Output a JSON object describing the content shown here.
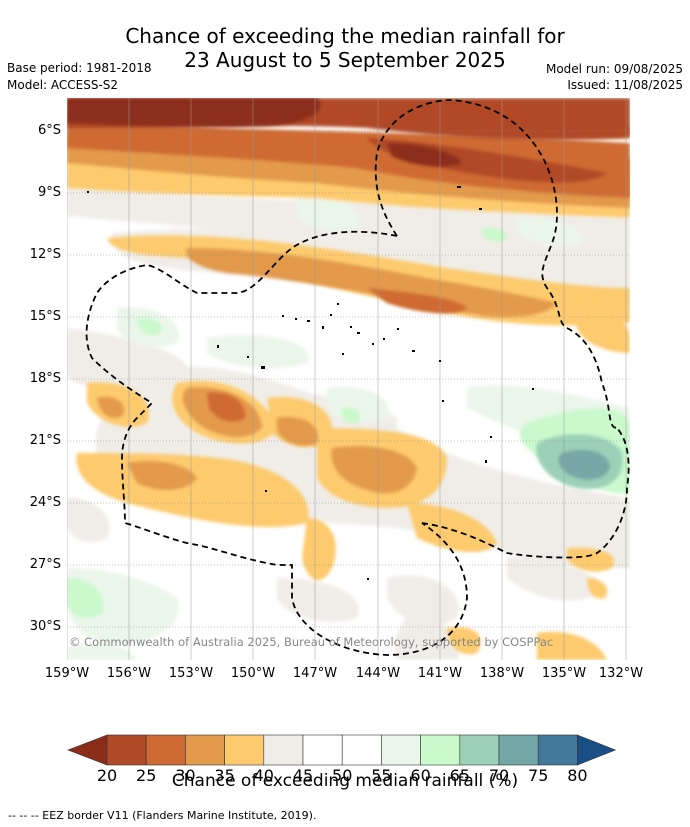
{
  "header": {
    "title_line1": "Chance of exceeding the median rainfall for",
    "title_line2": "23 August to 5 September 2025",
    "base_period": "Base period: 1981-2018",
    "model": "Model: ACCESS-S2",
    "model_run": "Model run: 09/08/2025",
    "issued": "Issued: 11/08/2025"
  },
  "map": {
    "lat_ticks": [
      "6°S",
      "9°S",
      "12°S",
      "15°S",
      "18°S",
      "21°S",
      "24°S",
      "27°S",
      "30°S"
    ],
    "lon_ticks": [
      "159°W",
      "156°W",
      "153°W",
      "150°W",
      "147°W",
      "144°W",
      "141°W",
      "138°W",
      "135°W",
      "132°W"
    ],
    "copyright": "© Commonwealth of Australia 2025, Bureau of Meteorology, supported by COSPPac"
  },
  "colorbar": {
    "ticks": [
      "20",
      "25",
      "30",
      "35",
      "40",
      "45",
      "50",
      "55",
      "60",
      "65",
      "70",
      "75",
      "80"
    ],
    "colors": [
      "#8c2d1a",
      "#b14a26",
      "#cf6a33",
      "#e39a4c",
      "#fdcb6e",
      "#f0ede8",
      "#ffffff",
      "#ffffff",
      "#ebf6ea",
      "#caf9cc",
      "#9cd0b7",
      "#74a8a6",
      "#42799a",
      "#1a4f86"
    ],
    "label": "Chance of exceeding median rainfall (%)"
  },
  "footer": {
    "eez_note": "--  --  -- EEZ border V11 (Flanders Marine Institute, 2019)."
  }
}
